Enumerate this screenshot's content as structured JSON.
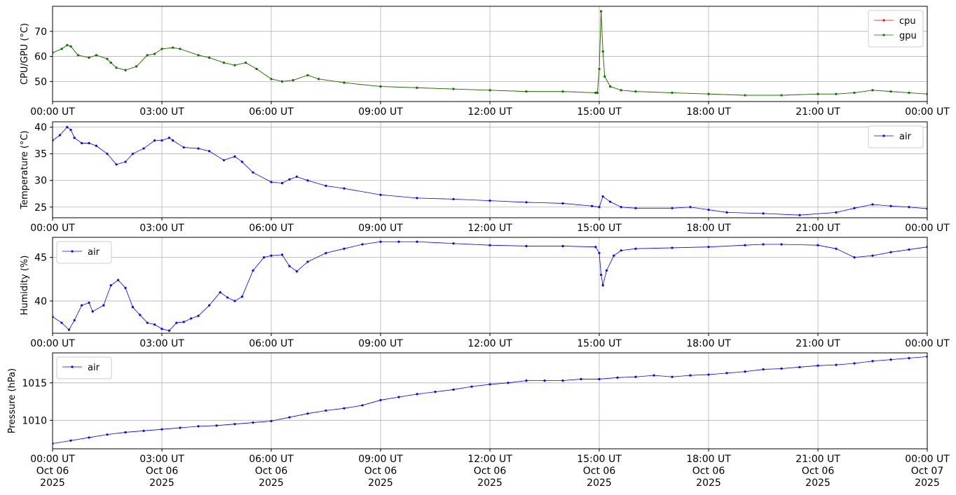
{
  "chart_data": [
    {
      "type": "line",
      "ylabel": "CPU/GPU (°C)",
      "xlabel": "",
      "title": "",
      "x_ticks": [
        "00:00 UT",
        "03:00 UT",
        "06:00 UT",
        "09:00 UT",
        "12:00 UT",
        "15:00 UT",
        "18:00 UT",
        "21:00 UT",
        "00:00 UT"
      ],
      "y_ticks": [
        50,
        60,
        70
      ],
      "ylim": [
        42,
        80
      ],
      "xlim_hours": [
        0,
        24
      ],
      "grid": true,
      "legend": "top-right",
      "series": [
        {
          "name": "cpu",
          "color": "#ff0000",
          "x": [
            0,
            0.25,
            0.4,
            0.5,
            0.7,
            1.0,
            1.2,
            1.5,
            1.6,
            1.75,
            2.0,
            2.3,
            2.6,
            2.8,
            3.0,
            3.3,
            3.5,
            4.0,
            4.3,
            4.7,
            5.0,
            5.3,
            5.6,
            6.0,
            6.3,
            6.6,
            7.0,
            7.3,
            8.0,
            9.0,
            10.0,
            11.0,
            12.0,
            13.0,
            14.0,
            14.9,
            14.95,
            15.0,
            15.05,
            15.1,
            15.15,
            15.3,
            15.6,
            16.0,
            17.0,
            18.0,
            19.0,
            20.0,
            21.0,
            21.5,
            22.0,
            22.5,
            23.0,
            23.5,
            24.0
          ],
          "y": [
            61.5,
            63,
            64.5,
            64,
            60.5,
            59.5,
            60.5,
            59,
            57.5,
            55.5,
            54.5,
            56,
            60.5,
            61,
            63,
            63.5,
            63,
            60.5,
            59.5,
            57.5,
            56.5,
            57.5,
            55,
            51,
            50,
            50.5,
            52.5,
            51,
            49.5,
            48,
            47.5,
            47,
            46.5,
            46,
            46,
            45.5,
            45.5,
            55,
            78,
            62,
            52,
            48,
            46.5,
            46,
            45.5,
            45,
            44.5,
            44.5,
            45,
            45,
            45.5,
            46.5,
            46,
            45.5,
            45
          ]
        },
        {
          "name": "gpu",
          "color": "#008000",
          "x": [
            0,
            0.25,
            0.4,
            0.5,
            0.7,
            1.0,
            1.2,
            1.5,
            1.6,
            1.75,
            2.0,
            2.3,
            2.6,
            2.8,
            3.0,
            3.3,
            3.5,
            4.0,
            4.3,
            4.7,
            5.0,
            5.3,
            5.6,
            6.0,
            6.3,
            6.6,
            7.0,
            7.3,
            8.0,
            9.0,
            10.0,
            11.0,
            12.0,
            13.0,
            14.0,
            14.9,
            14.95,
            15.0,
            15.05,
            15.1,
            15.15,
            15.3,
            15.6,
            16.0,
            17.0,
            18.0,
            19.0,
            20.0,
            21.0,
            21.5,
            22.0,
            22.5,
            23.0,
            23.5,
            24.0
          ],
          "y": [
            61.5,
            63,
            64.5,
            64,
            60.5,
            59.5,
            60.5,
            59,
            57.5,
            55.5,
            54.5,
            56,
            60.5,
            61,
            63,
            63.5,
            63,
            60.5,
            59.5,
            57.5,
            56.5,
            57.5,
            55,
            51,
            50,
            50.5,
            52.5,
            51,
            49.5,
            48,
            47.5,
            47,
            46.5,
            46,
            46,
            45.5,
            45.5,
            55,
            78,
            62,
            52,
            48,
            46.5,
            46,
            45.5,
            45,
            44.5,
            44.5,
            45,
            45,
            45.5,
            46.5,
            46,
            45.5,
            45
          ]
        }
      ]
    },
    {
      "type": "line",
      "ylabel": "Temperature (°C)",
      "xlabel": "",
      "title": "",
      "x_ticks": [
        "00:00 UT",
        "03:00 UT",
        "06:00 UT",
        "09:00 UT",
        "12:00 UT",
        "15:00 UT",
        "18:00 UT",
        "21:00 UT",
        "00:00 UT"
      ],
      "y_ticks": [
        25,
        30,
        35,
        40
      ],
      "ylim": [
        23,
        41
      ],
      "xlim_hours": [
        0,
        24
      ],
      "grid": true,
      "legend": "top-right",
      "series": [
        {
          "name": "air",
          "color": "#0000ff",
          "x": [
            0,
            0.2,
            0.4,
            0.5,
            0.6,
            0.8,
            1.0,
            1.2,
            1.5,
            1.75,
            2.0,
            2.2,
            2.5,
            2.8,
            3.0,
            3.2,
            3.3,
            3.6,
            4.0,
            4.3,
            4.7,
            5.0,
            5.2,
            5.5,
            6.0,
            6.3,
            6.5,
            6.7,
            7.0,
            7.5,
            8.0,
            9.0,
            10.0,
            11.0,
            12.0,
            13.0,
            14.0,
            14.8,
            15.0,
            15.1,
            15.3,
            15.6,
            16.0,
            17.0,
            17.5,
            18.0,
            18.5,
            19.5,
            20.5,
            21.5,
            22.0,
            22.5,
            23.0,
            23.5,
            24.0
          ],
          "y": [
            37.5,
            38.5,
            40,
            39.5,
            38,
            37,
            37,
            36.5,
            35,
            33,
            33.5,
            35,
            36,
            37.5,
            37.5,
            38,
            37.5,
            36.2,
            36,
            35.5,
            33.8,
            34.5,
            33.5,
            31.5,
            29.7,
            29.5,
            30.2,
            30.7,
            30,
            29,
            28.5,
            27.3,
            26.7,
            26.5,
            26.2,
            25.9,
            25.7,
            25.2,
            25,
            27,
            26,
            25,
            24.8,
            24.8,
            25,
            24.5,
            24,
            23.8,
            23.5,
            24,
            24.8,
            25.5,
            25.2,
            25,
            24.7
          ]
        }
      ]
    },
    {
      "type": "line",
      "ylabel": "Humidity (%)",
      "xlabel": "",
      "title": "",
      "x_ticks": [
        "00:00 UT",
        "03:00 UT",
        "06:00 UT",
        "09:00 UT",
        "12:00 UT",
        "15:00 UT",
        "18:00 UT",
        "21:00 UT",
        "00:00 UT"
      ],
      "y_ticks": [
        40,
        45
      ],
      "ylim": [
        36.3,
        47.3
      ],
      "xlim_hours": [
        0,
        24
      ],
      "grid": true,
      "legend": "top-left",
      "series": [
        {
          "name": "air",
          "color": "#0000ff",
          "x": [
            0,
            0.25,
            0.45,
            0.6,
            0.8,
            1.0,
            1.1,
            1.4,
            1.6,
            1.8,
            2.0,
            2.2,
            2.4,
            2.6,
            2.8,
            3.0,
            3.2,
            3.4,
            3.6,
            3.8,
            4.0,
            4.3,
            4.6,
            4.8,
            5.0,
            5.2,
            5.5,
            5.8,
            6.0,
            6.3,
            6.5,
            6.7,
            7.0,
            7.5,
            8.0,
            8.5,
            9.0,
            9.5,
            10.0,
            11.0,
            12.0,
            13.0,
            14.0,
            14.9,
            15.0,
            15.05,
            15.1,
            15.2,
            15.4,
            15.6,
            16.0,
            17.0,
            18.0,
            19.0,
            19.5,
            20.0,
            21.0,
            21.5,
            22.0,
            22.5,
            23.0,
            23.5,
            24.0
          ],
          "y": [
            38.2,
            37.5,
            36.7,
            37.8,
            39.5,
            39.8,
            38.8,
            39.5,
            41.8,
            42.4,
            41.5,
            39.3,
            38.4,
            37.5,
            37.3,
            36.8,
            36.6,
            37.5,
            37.6,
            38,
            38.3,
            39.5,
            41,
            40.4,
            40,
            40.5,
            43.5,
            45,
            45.2,
            45.3,
            44,
            43.4,
            44.5,
            45.5,
            46,
            46.5,
            46.8,
            46.8,
            46.8,
            46.6,
            46.4,
            46.3,
            46.3,
            46.2,
            45.5,
            43,
            41.8,
            43.5,
            45.2,
            45.8,
            46,
            46.1,
            46.2,
            46.4,
            46.5,
            46.5,
            46.4,
            46,
            45,
            45.2,
            45.6,
            45.9,
            46.2
          ]
        }
      ]
    },
    {
      "type": "line",
      "ylabel": "Pressure (hPa)",
      "xlabel": "",
      "title": "",
      "x_ticks": [
        "00:00 UT",
        "03:00 UT",
        "06:00 UT",
        "09:00 UT",
        "12:00 UT",
        "15:00 UT",
        "18:00 UT",
        "21:00 UT",
        "00:00 UT"
      ],
      "x_ticks_line2": [
        "Oct 06",
        "Oct 06",
        "Oct 06",
        "Oct 06",
        "Oct 06",
        "Oct 06",
        "Oct 06",
        "Oct 06",
        "Oct 07"
      ],
      "x_ticks_line3": [
        "2025",
        "2025",
        "2025",
        "2025",
        "2025",
        "2025",
        "2025",
        "2025",
        "2025"
      ],
      "y_ticks": [
        1010,
        1015
      ],
      "ylim": [
        1006.2,
        1019
      ],
      "xlim_hours": [
        0,
        24
      ],
      "grid": true,
      "legend": "top-left",
      "series": [
        {
          "name": "air",
          "color": "#0000ff",
          "x": [
            0,
            0.5,
            1.0,
            1.5,
            2.0,
            2.5,
            3.0,
            3.5,
            4.0,
            4.5,
            5.0,
            5.5,
            6.0,
            6.5,
            7.0,
            7.5,
            8.0,
            8.5,
            9.0,
            9.5,
            10.0,
            10.5,
            11.0,
            11.5,
            12.0,
            12.5,
            13.0,
            13.5,
            14.0,
            14.5,
            15.0,
            15.5,
            16.0,
            16.5,
            17.0,
            17.5,
            18.0,
            18.5,
            19.0,
            19.5,
            20.0,
            20.5,
            21.0,
            21.5,
            22.0,
            22.5,
            23.0,
            23.5,
            24.0
          ],
          "y": [
            1006.9,
            1007.3,
            1007.7,
            1008.1,
            1008.4,
            1008.6,
            1008.8,
            1009.0,
            1009.2,
            1009.3,
            1009.5,
            1009.7,
            1009.9,
            1010.4,
            1010.9,
            1011.3,
            1011.6,
            1012.0,
            1012.7,
            1013.1,
            1013.5,
            1013.8,
            1014.1,
            1014.5,
            1014.8,
            1015.0,
            1015.3,
            1015.3,
            1015.3,
            1015.5,
            1015.5,
            1015.7,
            1015.8,
            1016.0,
            1015.8,
            1016.0,
            1016.1,
            1016.3,
            1016.5,
            1016.8,
            1016.9,
            1017.1,
            1017.3,
            1017.4,
            1017.6,
            1017.9,
            1018.1,
            1018.3,
            1018.5
          ]
        }
      ]
    }
  ]
}
